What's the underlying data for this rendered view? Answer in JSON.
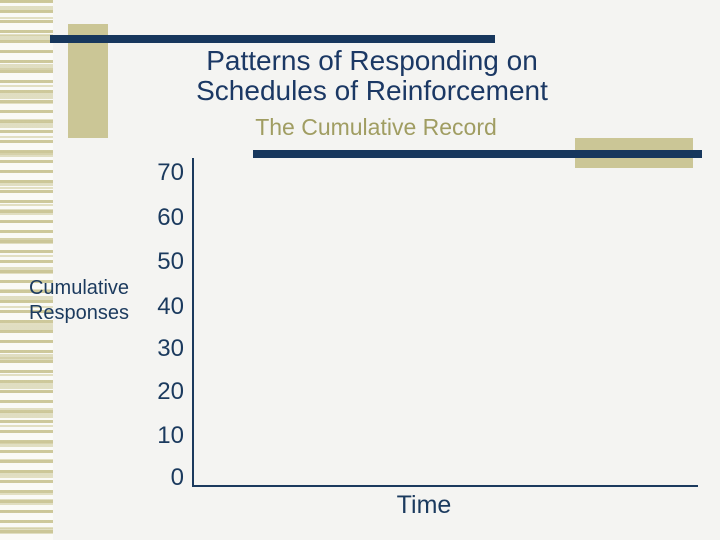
{
  "slide": {
    "title": "Patterns of Responding on\nSchedules of Reinforcement",
    "subtitle": "The Cumulative Record"
  },
  "chart_data": {
    "type": "line",
    "title": "The Cumulative Record",
    "xlabel": "Time",
    "ylabel": "Cumulative\nResponses",
    "yticks_top_to_bottom": [
      "70",
      "60",
      "50",
      "40",
      "30",
      "20",
      "10",
      "0"
    ],
    "ylim": [
      0,
      70
    ],
    "xticks": [],
    "series": [],
    "grid": false,
    "legend": false,
    "note_axes_only": "axes drawn with no plotted data"
  },
  "colors": {
    "navy_accent": "#17375d",
    "navy_text": "#1b3864",
    "tan_accent": "#cbc696",
    "subtitle_olive": "#a09d62",
    "background": "#f4f4f2"
  }
}
